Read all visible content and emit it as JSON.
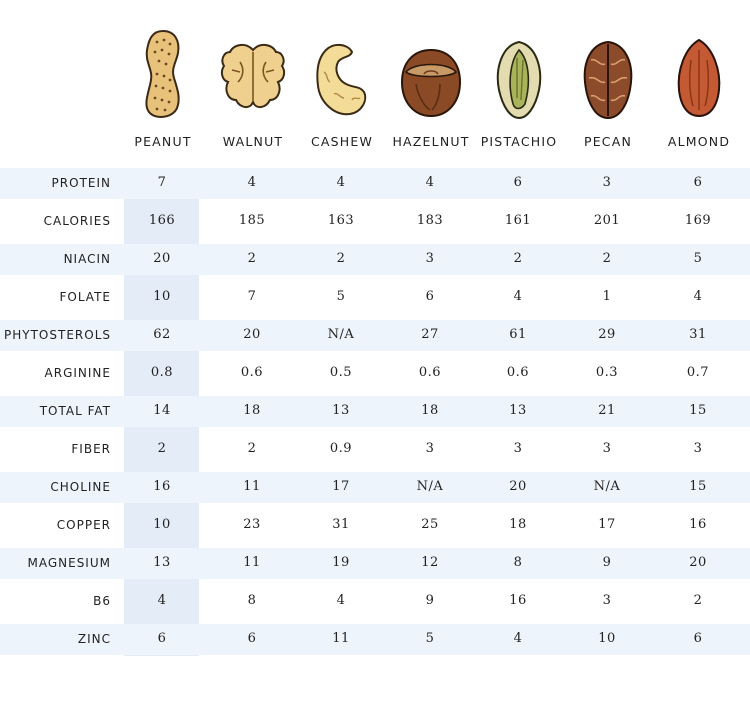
{
  "nuts": [
    {
      "name": "PEANUT",
      "icon": "peanut-icon",
      "color": "#e8c27a"
    },
    {
      "name": "WALNUT",
      "icon": "walnut-icon",
      "color": "#f0d08e"
    },
    {
      "name": "CASHEW",
      "icon": "cashew-icon",
      "color": "#f3dc97"
    },
    {
      "name": "HAZELNUT",
      "icon": "hazelnut-icon",
      "color": "#8a4a26"
    },
    {
      "name": "PISTACHIO",
      "icon": "pistachio-icon",
      "color": "#c9c98a"
    },
    {
      "name": "PECAN",
      "icon": "pecan-icon",
      "color": "#8c4b2a"
    },
    {
      "name": "ALMOND",
      "icon": "almond-icon",
      "color": "#c45a34"
    }
  ],
  "rows": [
    {
      "label": "PROTEIN",
      "values": [
        "7",
        "4",
        "4",
        "4",
        "6",
        "3",
        "6"
      ]
    },
    {
      "label": "CALORIES",
      "values": [
        "166",
        "185",
        "163",
        "183",
        "161",
        "201",
        "169"
      ]
    },
    {
      "label": "NIACIN",
      "values": [
        "20",
        "2",
        "2",
        "3",
        "2",
        "2",
        "5"
      ]
    },
    {
      "label": "FOLATE",
      "values": [
        "10",
        "7",
        "5",
        "6",
        "4",
        "1",
        "4"
      ]
    },
    {
      "label": "PHYTOSTEROLS",
      "values": [
        "62",
        "20",
        "N/A",
        "27",
        "61",
        "29",
        "31"
      ]
    },
    {
      "label": "ARGININE",
      "values": [
        "0.8",
        "0.6",
        "0.5",
        "0.6",
        "0.6",
        "0.3",
        "0.7"
      ]
    },
    {
      "label": "TOTAL FAT",
      "values": [
        "14",
        "18",
        "13",
        "18",
        "13",
        "21",
        "15"
      ]
    },
    {
      "label": "FIBER",
      "values": [
        "2",
        "2",
        "0.9",
        "3",
        "3",
        "3",
        "3"
      ]
    },
    {
      "label": "CHOLINE",
      "values": [
        "16",
        "11",
        "17",
        "N/A",
        "20",
        "N/A",
        "15"
      ]
    },
    {
      "label": "COPPER",
      "values": [
        "10",
        "23",
        "31",
        "25",
        "18",
        "17",
        "16"
      ]
    },
    {
      "label": "MAGNESIUM",
      "values": [
        "13",
        "11",
        "19",
        "12",
        "8",
        "9",
        "20"
      ]
    },
    {
      "label": "B6",
      "values": [
        "4",
        "8",
        "4",
        "9",
        "16",
        "3",
        "2"
      ]
    },
    {
      "label": "ZINC",
      "values": [
        "6",
        "6",
        "11",
        "5",
        "4",
        "10",
        "6"
      ]
    }
  ],
  "colors": {
    "row_shade": "#eef4fb",
    "peanut_highlight": "#cddcf0"
  }
}
